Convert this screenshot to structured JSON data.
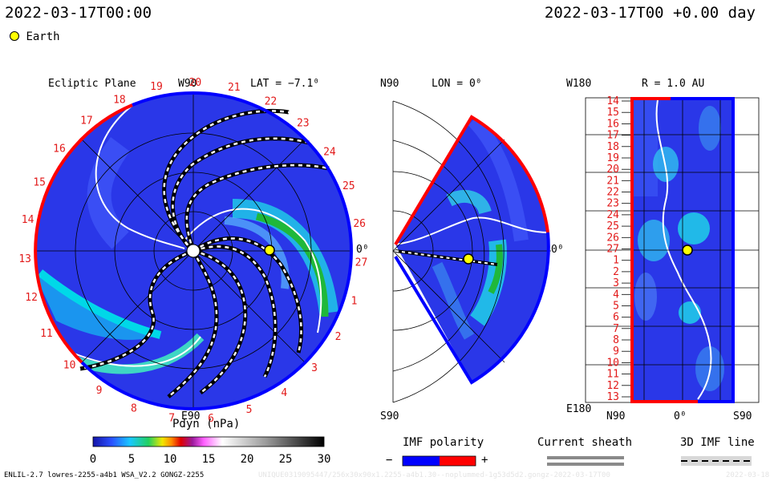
{
  "header": {
    "datetime_left": "2022-03-17T00:00",
    "datetime_right": "2022-03-17T00 +0.00 day"
  },
  "legend": {
    "earth_label": "Earth"
  },
  "panels": {
    "ecliptic": {
      "title": "Ecliptic Plane",
      "lat_label": "LAT = −7.1⁰",
      "top_label": "W90",
      "bottom_label": "E90",
      "right_label": "0⁰",
      "rim_labels": [
        "1",
        "2",
        "3",
        "4",
        "5",
        "6",
        "7",
        "8",
        "9",
        "10",
        "11",
        "12",
        "13",
        "14",
        "15",
        "16",
        "17",
        "18",
        "19",
        "20",
        "21",
        "22",
        "23",
        "24",
        "25",
        "26",
        "27"
      ]
    },
    "meridional": {
      "top_label": "N90",
      "lon_label": "LON = 0⁰",
      "bottom_label": "S90",
      "right_label": "0⁰"
    },
    "radial": {
      "top_left_label": "W180",
      "r_label": "R = 1.0 AU",
      "bottom_left_label": "E180",
      "x_labels": [
        "N90",
        "0⁰",
        "S90"
      ],
      "row_labels": [
        "14",
        "15",
        "16",
        "17",
        "18",
        "19",
        "20",
        "21",
        "22",
        "23",
        "24",
        "25",
        "26",
        "27",
        "1",
        "2",
        "3",
        "4",
        "5",
        "6",
        "7",
        "8",
        "9",
        "10",
        "11",
        "12",
        "13"
      ]
    }
  },
  "colorbar": {
    "title": "Pdyn (nPa)",
    "ticks": [
      "0",
      "5",
      "10",
      "15",
      "20",
      "25",
      "30"
    ],
    "range": [
      0,
      30
    ]
  },
  "imf_polarity": {
    "title": "IMF polarity",
    "minus": "−",
    "plus": "+",
    "colors": [
      "#0000ff",
      "#ff0000"
    ]
  },
  "current_sheath": {
    "title": "Current sheath"
  },
  "imf_line": {
    "title": "3D IMF line"
  },
  "footer": {
    "model_info": "ENLIL-2.7 lowres-2255-a4b1 WSA_V2.2 GONGZ-2255",
    "run_id": "UNIQUE0319095447/256x30x90x1.2255-a4b1.30--noplummed-1g53d5d2.gongz-2022-03-17T00",
    "stamp": "2022-03-18"
  },
  "chart_data": {
    "type": "heatmap",
    "quantity": "Pdyn (nPa)",
    "range": [
      0,
      30
    ],
    "radial_distance_au": 1.0,
    "earth_latitude_deg": -7.1,
    "earth_longitude_deg": 0,
    "colors": {
      "low": "#2a37e8",
      "cir": "#00c8e6",
      "peak": "#1fb83a",
      "boundary_pos": "#ff0000",
      "boundary_neg": "#0000ff"
    }
  }
}
